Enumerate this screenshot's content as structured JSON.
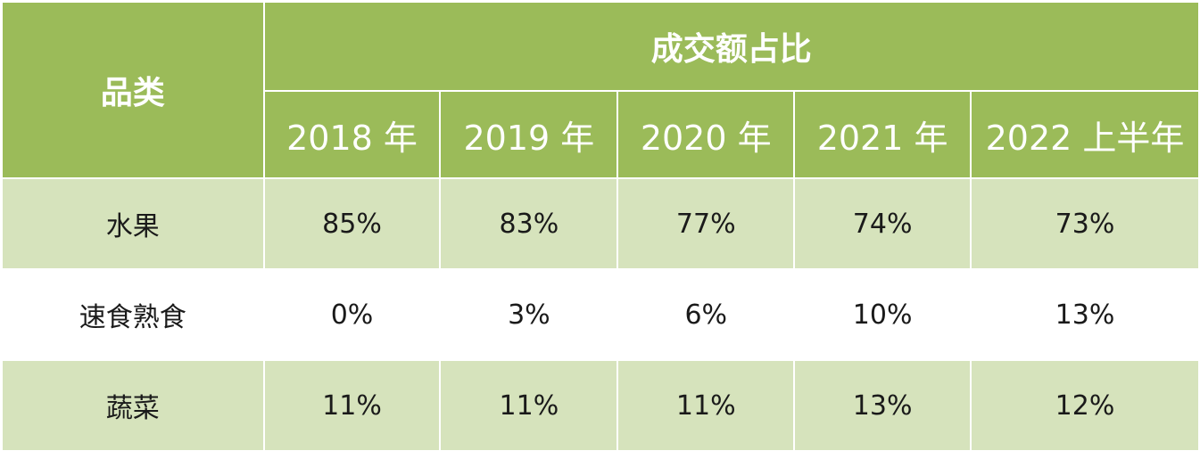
{
  "header": {
    "category_label": "品类",
    "group_label": "成交额占比",
    "years": [
      "2018 年",
      "2019 年",
      "2020 年",
      "2021 年",
      "2022 上半年"
    ]
  },
  "rows": [
    {
      "category": "水果",
      "values": [
        "85%",
        "83%",
        "77%",
        "74%",
        "73%"
      ]
    },
    {
      "category": "速食熟食",
      "values": [
        "0%",
        "3%",
        "6%",
        "10%",
        "13%"
      ]
    },
    {
      "category": "蔬菜",
      "values": [
        "11%",
        "11%",
        "11%",
        "13%",
        "12%"
      ]
    }
  ],
  "colors": {
    "header_bg": "#9bbb59",
    "band_bg": "#d6e3bc",
    "plain_bg": "#ffffff",
    "header_text": "#ffffff"
  },
  "chart_data": {
    "type": "table",
    "columns": [
      "2018 年",
      "2019 年",
      "2020 年",
      "2021 年",
      "2022 上半年"
    ],
    "series": [
      {
        "name": "水果",
        "values": [
          85,
          83,
          77,
          74,
          73
        ]
      },
      {
        "name": "速食熟食",
        "values": [
          0,
          3,
          6,
          10,
          13
        ]
      },
      {
        "name": "蔬菜",
        "values": [
          11,
          11,
          11,
          13,
          12
        ]
      }
    ],
    "unit": "%"
  }
}
